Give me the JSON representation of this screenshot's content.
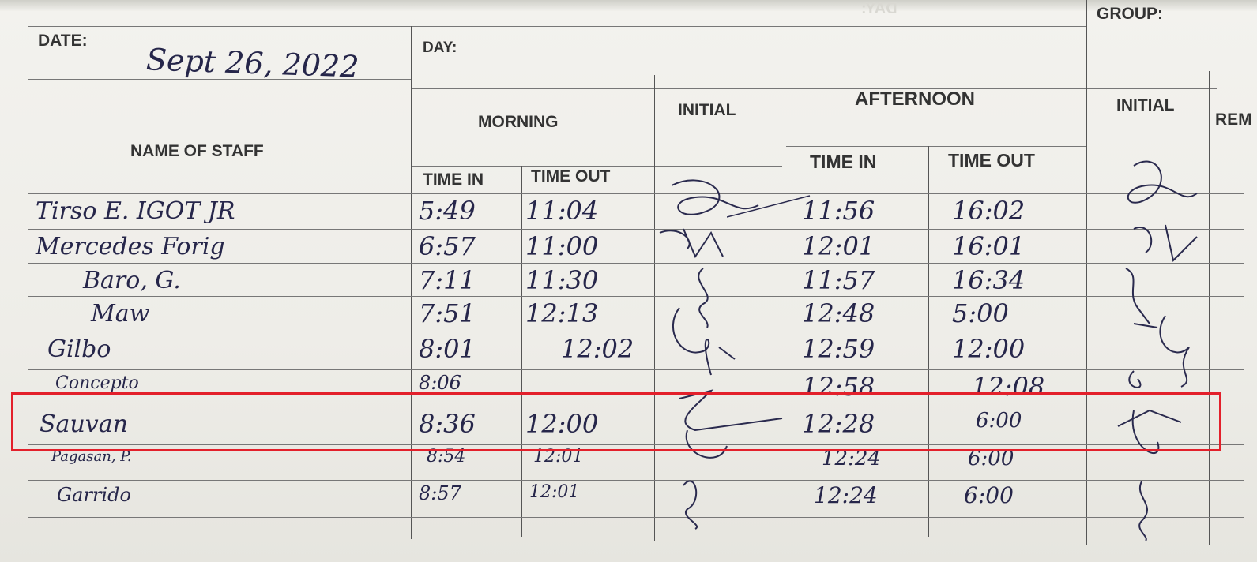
{
  "form": {
    "date_label": "DATE:",
    "date_value": "Sept 26, 2022",
    "day_label": "DAY:",
    "group_label": "GROUP:",
    "name_header": "NAME OF STAFF",
    "morning_header": "MORNING",
    "afternoon_header": "AFTERNOON",
    "initial_header": "INITIAL",
    "initial_header_2": "INITIAL",
    "remarks_header_partial": "REM",
    "time_in": "TIME IN",
    "time_out": "TIME OUT",
    "time_in_2": "TIME IN",
    "time_out_2": "TIME OUT"
  },
  "rows": [
    {
      "name": "Tirso E. IGOT JR",
      "am_in": "5:49",
      "am_out": "11:04",
      "pm_in": "11:56",
      "pm_out": "16:02"
    },
    {
      "name": "Mercedes Forig",
      "am_in": "6:57",
      "am_out": "11:00",
      "pm_in": "12:01",
      "pm_out": "16:01"
    },
    {
      "name": "Baro, G.",
      "am_in": "7:11",
      "am_out": "11:30",
      "pm_in": "11:57",
      "pm_out": "16:34"
    },
    {
      "name": "Maw",
      "am_in": "7:51",
      "am_out": "12:13",
      "pm_in": "12:48",
      "pm_out": "5:00"
    },
    {
      "name": "Gilbo",
      "am_in": "8:01",
      "am_out": "12:02",
      "pm_in": "12:59",
      "pm_out": "12:00"
    },
    {
      "name": "Concepto",
      "am_in": "8:06",
      "am_out": "",
      "pm_in": "12:58",
      "pm_out": "12:08"
    },
    {
      "name": "Sauvan",
      "am_in": "8:36",
      "am_out": "12:00",
      "pm_in": "12:28",
      "pm_out": "6:00"
    },
    {
      "name": "Pagasan, P.",
      "am_in": "8:54",
      "am_out": "12:01",
      "pm_in": "12:24",
      "pm_out": "6:00"
    },
    {
      "name": "Garrido",
      "am_in": "8:57",
      "am_out": "12:01",
      "pm_in": "12:24",
      "pm_out": "6:00"
    }
  ],
  "highlight": {
    "row": "Sauvan",
    "color": "#e3202b"
  }
}
